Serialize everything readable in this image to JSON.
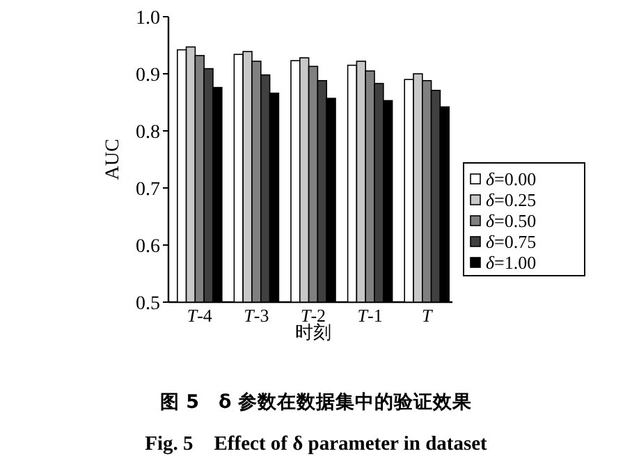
{
  "chart_data": {
    "type": "bar",
    "title": "图 5　δ 参数在数据集中的验证效果",
    "subtitle": "Fig. 5　Effect of δ parameter in dataset",
    "xlabel": "时刻",
    "ylabel": "AUC",
    "categories": [
      "T-4",
      "T-3",
      "T-2",
      "T-1",
      "T"
    ],
    "series": [
      {
        "name": "δ=0.00",
        "color": "#ffffff",
        "values": [
          0.942,
          0.934,
          0.923,
          0.915,
          0.89
        ]
      },
      {
        "name": "δ=0.25",
        "color": "#c8c8c8",
        "values": [
          0.947,
          0.939,
          0.928,
          0.922,
          0.9
        ]
      },
      {
        "name": "δ=0.50",
        "color": "#808080",
        "values": [
          0.932,
          0.922,
          0.913,
          0.905,
          0.888
        ]
      },
      {
        "name": "δ=0.75",
        "color": "#404040",
        "values": [
          0.909,
          0.898,
          0.888,
          0.883,
          0.871
        ]
      },
      {
        "name": "δ=1.00",
        "color": "#000000",
        "values": [
          0.876,
          0.866,
          0.857,
          0.853,
          0.842
        ]
      }
    ],
    "ylim": [
      0.5,
      1.0
    ],
    "yticks": [
      0.5,
      0.6,
      0.7,
      0.8,
      0.9,
      {
        "value": 1.0,
        "label": "1.0"
      }
    ],
    "legend": "right"
  }
}
